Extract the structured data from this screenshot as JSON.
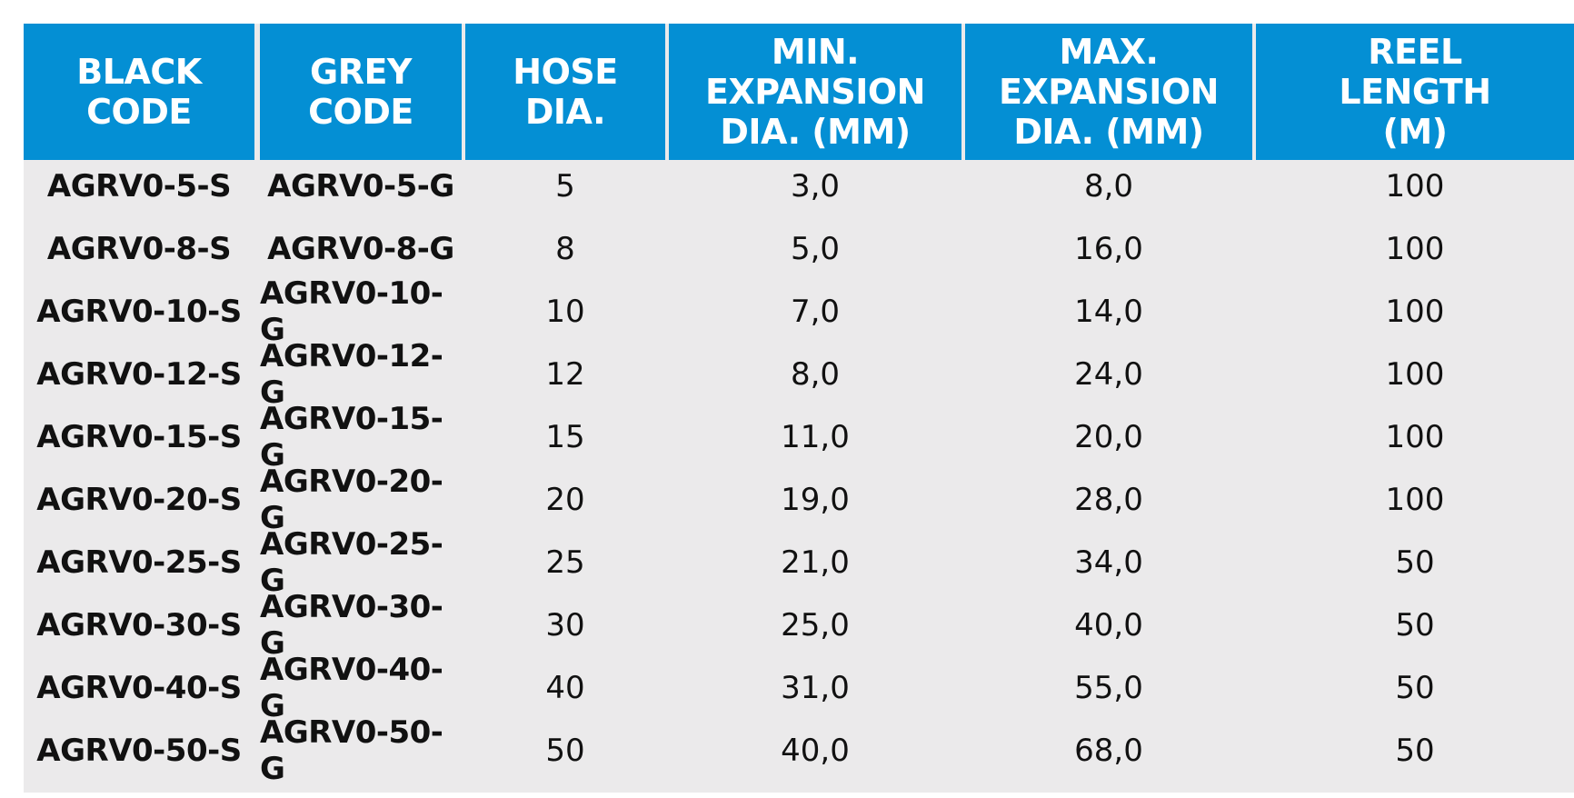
{
  "table": {
    "headers": [
      "BLACK\nCODE",
      "GREY\nCODE",
      "HOSE\nDIA.",
      "MIN. EXPANSION\nDIA. (MM)",
      "MAX. EXPANSION\nDIA. (MM)",
      "REEL\nLENGTH\n(M)"
    ],
    "rows": [
      [
        "AGRV0-5-S",
        "AGRV0-5-G",
        "5",
        "3,0",
        "8,0",
        "100"
      ],
      [
        "AGRV0-8-S",
        "AGRV0-8-G",
        "8",
        "5,0",
        "16,0",
        "100"
      ],
      [
        "AGRV0-10-S",
        "AGRV0-10-G",
        "10",
        "7,0",
        "14,0",
        "100"
      ],
      [
        "AGRV0-12-S",
        "AGRV0-12-G",
        "12",
        "8,0",
        "24,0",
        "100"
      ],
      [
        "AGRV0-15-S",
        "AGRV0-15-G",
        "15",
        "11,0",
        "20,0",
        "100"
      ],
      [
        "AGRV0-20-S",
        "AGRV0-20-G",
        "20",
        "19,0",
        "28,0",
        "100"
      ],
      [
        "AGRV0-25-S",
        "AGRV0-25-G",
        "25",
        "21,0",
        "34,0",
        "50"
      ],
      [
        "AGRV0-30-S",
        "AGRV0-30-G",
        "30",
        "25,0",
        "40,0",
        "50"
      ],
      [
        "AGRV0-40-S",
        "AGRV0-40-G",
        "40",
        "31,0",
        "55,0",
        "50"
      ],
      [
        "AGRV0-50-S",
        "AGRV0-50-G",
        "50",
        "40,0",
        "68,0",
        "50"
      ]
    ]
  },
  "colors": {
    "header_bg": "#048fd4",
    "header_text": "#ffffff",
    "body_bg": "#ebeaeb",
    "body_text": "#111111"
  }
}
